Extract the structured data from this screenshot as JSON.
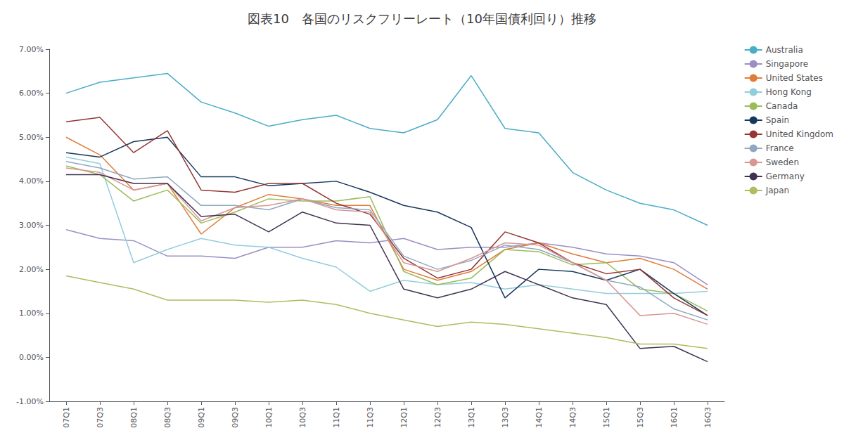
{
  "chart_data": {
    "type": "line",
    "title": "図表10　各国のリスクフリーレート（10年国債利回り）推移",
    "categories": [
      "07Q1",
      "07Q3",
      "08Q1",
      "08Q3",
      "09Q1",
      "09Q3",
      "10Q1",
      "10Q3",
      "11Q1",
      "11Q3",
      "12Q1",
      "12Q3",
      "13Q1",
      "13Q3",
      "14Q1",
      "14Q3",
      "15Q1",
      "15Q3",
      "16Q1",
      "16Q3"
    ],
    "series": [
      {
        "name": "Australia",
        "color": "#4BACC6",
        "values": [
          0.06,
          0.0625,
          0.0635,
          0.0645,
          0.058,
          0.0555,
          0.0525,
          0.054,
          0.055,
          0.052,
          0.051,
          0.054,
          0.064,
          0.052,
          0.051,
          0.042,
          0.038,
          0.035,
          0.0335,
          0.03
        ]
      },
      {
        "name": "Singapore",
        "color": "#9B8EC4",
        "values": [
          0.029,
          0.027,
          0.0265,
          0.023,
          0.023,
          0.0225,
          0.025,
          0.025,
          0.0265,
          0.026,
          0.027,
          0.0245,
          0.025,
          0.025,
          0.026,
          0.025,
          0.0235,
          0.023,
          0.0215,
          0.0165
        ]
      },
      {
        "name": "United States",
        "color": "#E07B39",
        "values": [
          0.05,
          0.046,
          0.038,
          0.0395,
          0.028,
          0.034,
          0.037,
          0.036,
          0.0345,
          0.0345,
          0.02,
          0.0175,
          0.0195,
          0.0245,
          0.026,
          0.0235,
          0.0215,
          0.0225,
          0.02,
          0.0155
        ]
      },
      {
        "name": "Hong Kong",
        "color": "#92CDDC",
        "values": [
          0.0455,
          0.044,
          0.0215,
          0.0245,
          0.027,
          0.0255,
          0.025,
          0.0225,
          0.0205,
          0.015,
          0.0175,
          0.0165,
          0.017,
          0.0155,
          0.0165,
          0.0155,
          0.0145,
          0.0145,
          0.0145,
          0.015
        ]
      },
      {
        "name": "Canada",
        "color": "#9BBB59",
        "values": [
          0.0435,
          0.0415,
          0.0355,
          0.038,
          0.0305,
          0.033,
          0.036,
          0.0355,
          0.0355,
          0.0365,
          0.0195,
          0.0165,
          0.018,
          0.0245,
          0.024,
          0.021,
          0.0215,
          0.0155,
          0.0145,
          0.0105
        ]
      },
      {
        "name": "Spain",
        "color": "#17375E",
        "values": [
          0.0465,
          0.0455,
          0.049,
          0.05,
          0.041,
          0.041,
          0.039,
          0.0395,
          0.04,
          0.0375,
          0.0345,
          0.033,
          0.0295,
          0.0135,
          0.02,
          0.0195,
          0.0175,
          0.02,
          0.0145,
          0.0095
        ]
      },
      {
        "name": "United Kingdom",
        "color": "#943634",
        "values": [
          0.0535,
          0.0545,
          0.0465,
          0.0515,
          0.038,
          0.0375,
          0.0395,
          0.0395,
          0.035,
          0.0325,
          0.0225,
          0.018,
          0.02,
          0.0285,
          0.026,
          0.0215,
          0.019,
          0.02,
          0.0135,
          0.0095
        ]
      },
      {
        "name": "France",
        "color": "#8EA9C1",
        "values": [
          0.0445,
          0.043,
          0.0405,
          0.041,
          0.0345,
          0.0345,
          0.0335,
          0.036,
          0.034,
          0.0335,
          0.023,
          0.02,
          0.022,
          0.0255,
          0.0245,
          0.0215,
          0.0175,
          0.016,
          0.011,
          0.0085
        ]
      },
      {
        "name": "Sweden",
        "color": "#D99694",
        "values": [
          0.043,
          0.042,
          0.038,
          0.0395,
          0.031,
          0.034,
          0.0345,
          0.036,
          0.0335,
          0.033,
          0.0215,
          0.0195,
          0.0225,
          0.026,
          0.0255,
          0.0215,
          0.0175,
          0.0095,
          0.01,
          0.0075
        ]
      },
      {
        "name": "Germany",
        "color": "#403152",
        "values": [
          0.0415,
          0.0415,
          0.0395,
          0.0395,
          0.032,
          0.0325,
          0.0285,
          0.033,
          0.0305,
          0.03,
          0.0155,
          0.0135,
          0.0155,
          0.0195,
          0.0165,
          0.0135,
          0.012,
          0.002,
          0.0025,
          -0.001
        ]
      },
      {
        "name": "Japan",
        "color": "#AFBC60",
        "values": [
          0.0185,
          0.017,
          0.0155,
          0.013,
          0.013,
          0.013,
          0.0125,
          0.013,
          0.012,
          0.01,
          0.0085,
          0.007,
          0.008,
          0.0075,
          0.0065,
          0.0055,
          0.0045,
          0.003,
          0.003,
          0.002
        ]
      }
    ],
    "ylim": [
      -0.01,
      0.07
    ],
    "yticks": [
      {
        "value": -0.01,
        "label": "-1.00%"
      },
      {
        "value": 0.0,
        "label": "0.00%"
      },
      {
        "value": 0.01,
        "label": "1.00%"
      },
      {
        "value": 0.02,
        "label": "2.00%"
      },
      {
        "value": 0.03,
        "label": "3.00%"
      },
      {
        "value": 0.04,
        "label": "4.00%"
      },
      {
        "value": 0.05,
        "label": "5.00%"
      },
      {
        "value": 0.06,
        "label": "6.00%"
      },
      {
        "value": 0.07,
        "label": "7.00%"
      }
    ],
    "grid": false,
    "legend": "right"
  }
}
